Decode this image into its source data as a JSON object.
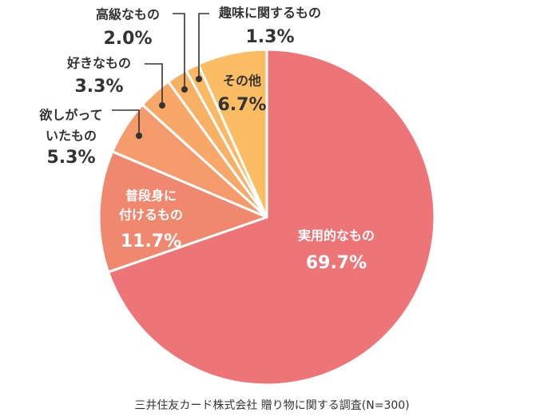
{
  "chart_data": {
    "type": "pie",
    "slices": [
      {
        "label_lines": [
          "実用的なもの"
        ],
        "value": 69.7,
        "value_label": "69.7%",
        "color": "#ee7577",
        "text_color": "#ffffff"
      },
      {
        "label_lines": [
          "普段身に",
          "付けるもの"
        ],
        "value": 11.7,
        "value_label": "11.7%",
        "color": "#f0886f",
        "text_color": "#ffffff"
      },
      {
        "label_lines": [
          "欲しがって",
          "いたもの"
        ],
        "value": 5.3,
        "value_label": "5.3%",
        "color": "#f59a6b",
        "text_color": "#333333"
      },
      {
        "label_lines": [
          "好きなもの"
        ],
        "value": 3.3,
        "value_label": "3.3%",
        "color": "#f7a868",
        "text_color": "#333333"
      },
      {
        "label_lines": [
          "高級なもの"
        ],
        "value": 2.0,
        "value_label": "2.0%",
        "color": "#f8b065",
        "text_color": "#333333"
      },
      {
        "label_lines": [
          "趣味に関するもの"
        ],
        "value": 1.3,
        "value_label": "1.3%",
        "color": "#fab864",
        "text_color": "#333333"
      },
      {
        "label_lines": [
          "その他"
        ],
        "value": 6.7,
        "value_label": "6.7%",
        "color": "#fbbd63",
        "text_color": "#333333"
      }
    ],
    "start": "12 o'clock",
    "direction": "clockwise",
    "legend": "none"
  },
  "source": "三井住友カード株式会社 贈り物に関する調査(N=300)"
}
